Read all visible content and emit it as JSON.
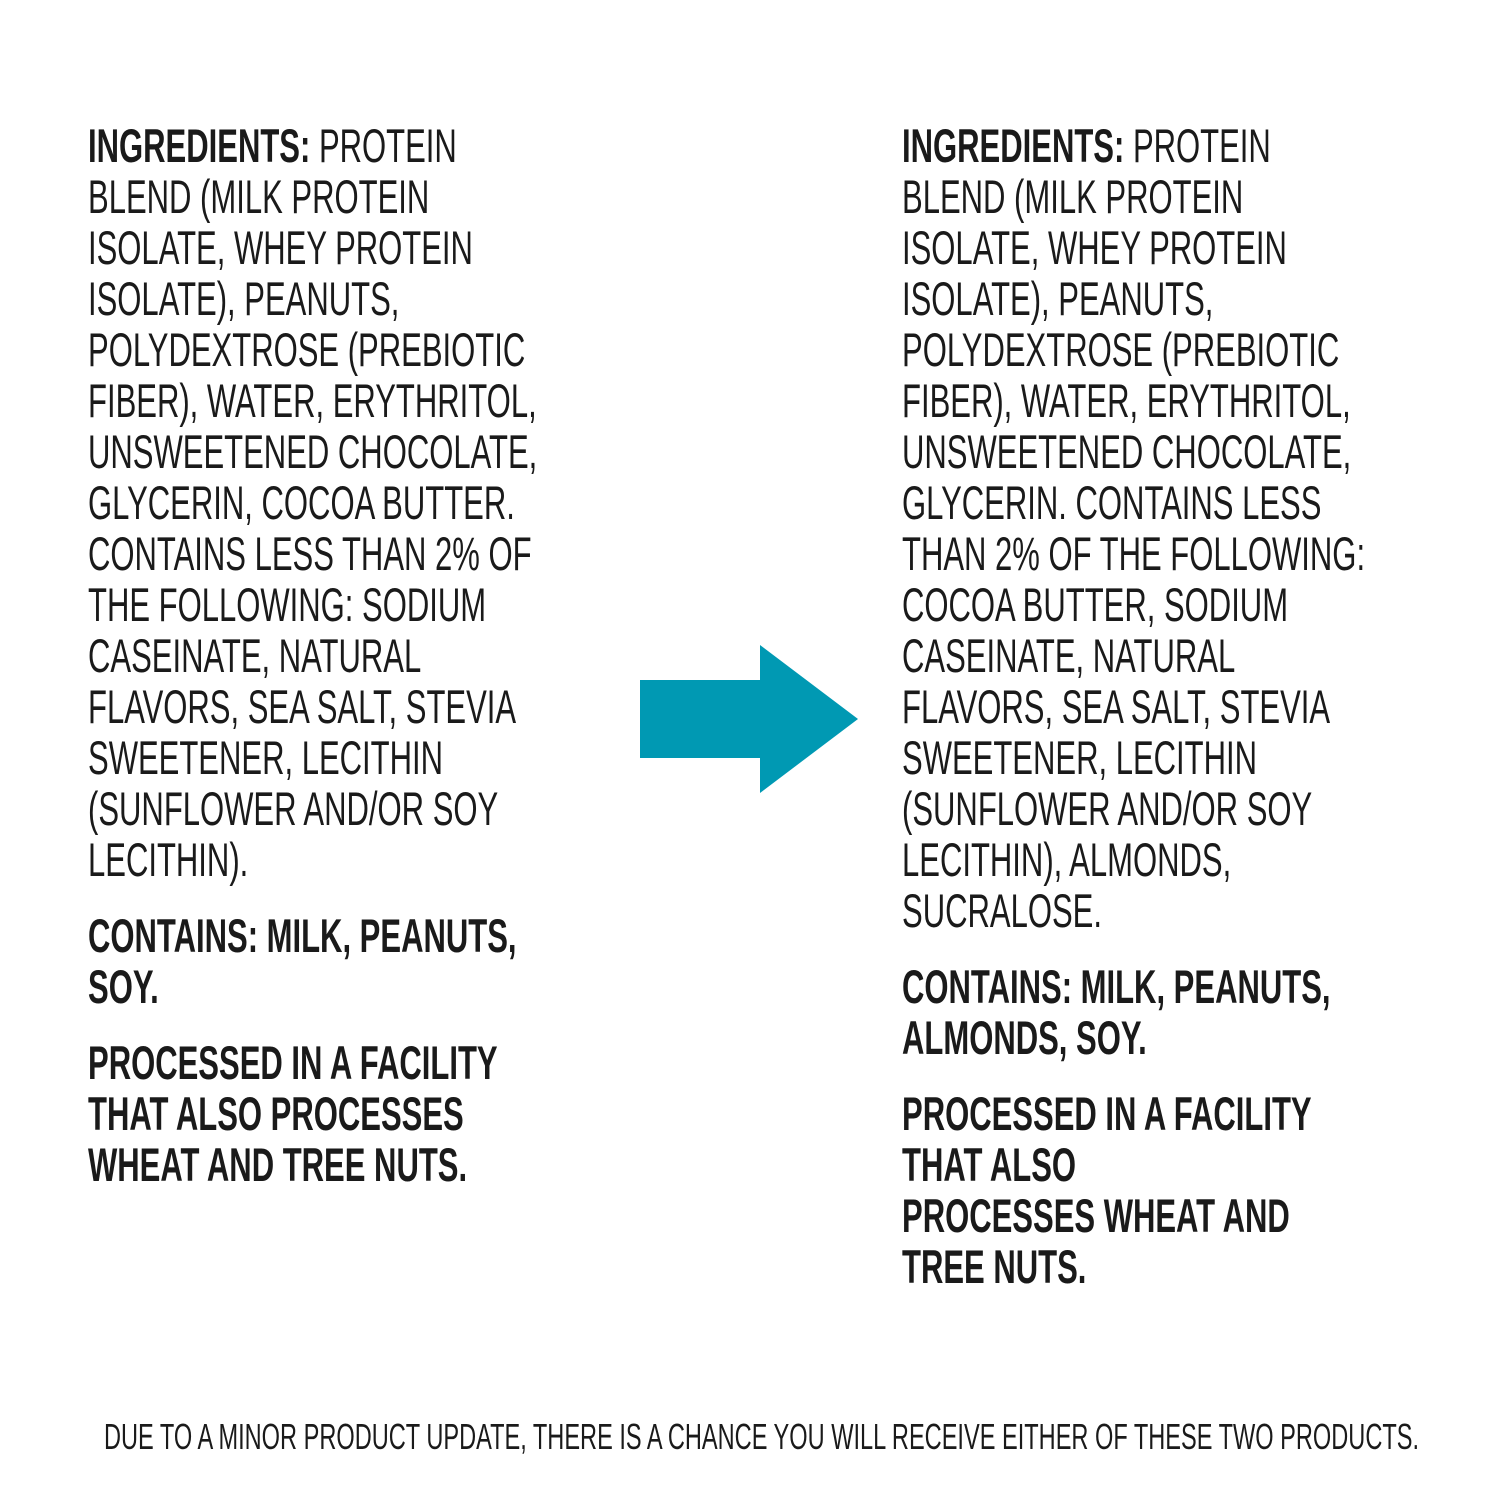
{
  "left": {
    "ingredients_label": "INGREDIENTS:",
    "ingredients_lines": [
      " PROTEIN",
      "BLEND (MILK PROTEIN",
      "ISOLATE, WHEY PROTEIN",
      "ISOLATE), PEANUTS,",
      "POLYDEXTROSE (PREBIOTIC",
      "FIBER), WATER, ERYTHRITOL,",
      "UNSWEETENED CHOCOLATE,",
      "GLYCERIN, COCOA BUTTER.",
      "CONTAINS LESS THAN 2% OF",
      "THE FOLLOWING: SODIUM",
      "CASEINATE, NATURAL",
      "FLAVORS, SEA SALT, STEVIA",
      "SWEETENER, LECITHIN",
      "(SUNFLOWER AND/OR SOY",
      "LECITHIN)."
    ],
    "contains_lines": [
      "CONTAINS: MILK, PEANUTS,",
      "SOY."
    ],
    "facility_lines": [
      "PROCESSED IN A FACILITY",
      "THAT ALSO PROCESSES",
      "WHEAT AND TREE NUTS."
    ]
  },
  "right": {
    "ingredients_label": "INGREDIENTS:",
    "ingredients_lines": [
      " PROTEIN",
      "BLEND (MILK PROTEIN",
      "ISOLATE, WHEY PROTEIN",
      "ISOLATE), PEANUTS,",
      "POLYDEXTROSE (PREBIOTIC",
      "FIBER), WATER, ERYTHRITOL,",
      "UNSWEETENED CHOCOLATE,",
      "GLYCERIN. CONTAINS LESS",
      "THAN 2% OF THE FOLLOWING:",
      "COCOA BUTTER, SODIUM",
      "CASEINATE, NATURAL",
      "FLAVORS, SEA SALT, STEVIA",
      "SWEETENER, LECITHIN",
      "(SUNFLOWER AND/OR SOY",
      "LECITHIN), ALMONDS,",
      "SUCRALOSE."
    ],
    "contains_lines": [
      "CONTAINS: MILK, PEANUTS,",
      "ALMONDS, SOY."
    ],
    "facility_lines": [
      "PROCESSED IN A FACILITY",
      "THAT ALSO",
      "PROCESSES WHEAT AND",
      "TREE NUTS."
    ]
  },
  "arrow": {
    "icon": "arrow-right-icon",
    "color": "#0099b3"
  },
  "footer": "DUE TO A MINOR PRODUCT UPDATE, THERE IS A CHANCE YOU WILL RECEIVE EITHER OF THESE TWO PRODUCTS."
}
